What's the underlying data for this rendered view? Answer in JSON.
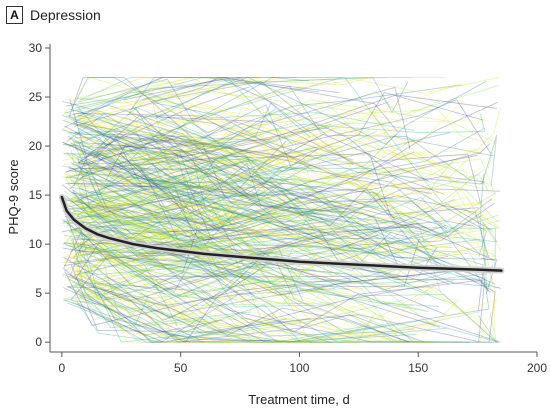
{
  "panel": {
    "letter": "A",
    "title": "Depression"
  },
  "chart_data": {
    "type": "line",
    "title": "Depression",
    "xlabel": "Treatment time, d",
    "ylabel": "PHQ-9 score",
    "xlim": [
      -5,
      200
    ],
    "ylim": [
      -1,
      30
    ],
    "xticks": [
      0,
      50,
      100,
      150,
      200
    ],
    "yticks": [
      0,
      5,
      10,
      15,
      20,
      25,
      30
    ],
    "grid": false,
    "legend": "none",
    "individual_trajectories": {
      "description_visible": "many semi-transparent patient trajectories",
      "colors": [
        "#2a788e",
        "#22a884",
        "#7ad151",
        "#bddf26",
        "#fde725",
        "#414487"
      ],
      "x_range": [
        0,
        185
      ],
      "y_range": [
        0,
        27
      ]
    },
    "series": [
      {
        "kind": "mean-trend",
        "color": "#222222",
        "x": [
          0,
          2,
          5,
          10,
          15,
          20,
          30,
          40,
          50,
          60,
          75,
          90,
          100,
          125,
          150,
          175,
          185
        ],
        "y": [
          14.8,
          13.4,
          12.5,
          11.6,
          11.0,
          10.6,
          10.0,
          9.6,
          9.3,
          9.0,
          8.7,
          8.4,
          8.2,
          7.9,
          7.6,
          7.4,
          7.3
        ]
      }
    ]
  }
}
